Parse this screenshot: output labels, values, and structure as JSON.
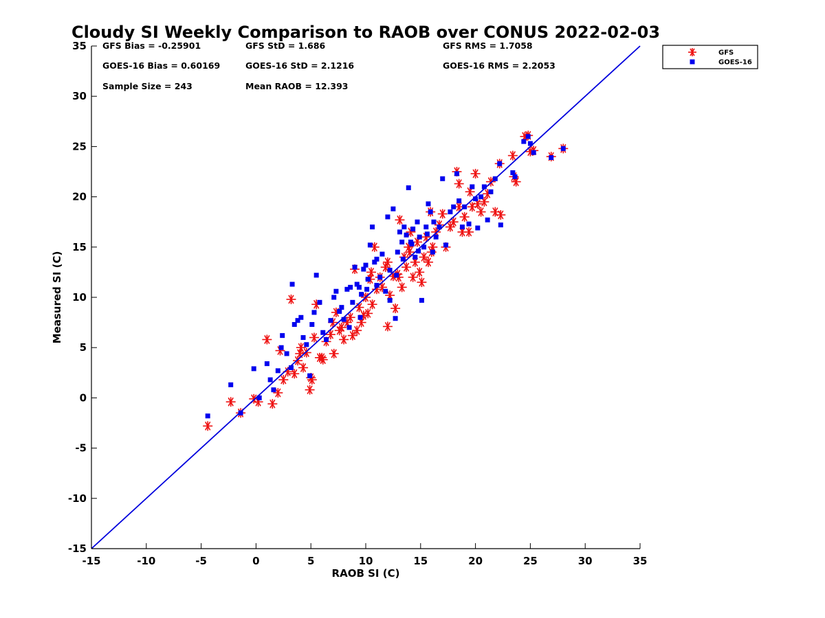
{
  "chart_data": {
    "type": "scatter",
    "title": "Cloudy SI Weekly Comparison to RAOB over CONUS 2022-02-03",
    "xlabel": "RAOB SI (C)",
    "ylabel": "Measured SI (C)",
    "xlim": [
      -15,
      35
    ],
    "ylim": [
      -15,
      35
    ],
    "xticks": [
      -15,
      -10,
      -5,
      0,
      5,
      10,
      15,
      20,
      25,
      30,
      35
    ],
    "yticks": [
      -15,
      -10,
      -5,
      0,
      5,
      10,
      15,
      20,
      25,
      30,
      35
    ],
    "grid": false,
    "legend_position": "outside-top-right",
    "reference_line": {
      "type": "one-to-one",
      "from": [
        -15,
        -15
      ],
      "to": [
        35,
        35
      ],
      "color": "#0000dd"
    },
    "stats": [
      [
        "GFS Bias = -0.25901",
        "GFS StD = 1.686",
        "GFS RMS = 1.7058"
      ],
      [
        "GOES-16 Bias = 0.60169",
        "GOES-16 StD = 2.1216",
        "GOES-16 RMS = 2.2053"
      ],
      [
        "Sample Size = 243",
        "Mean RAOB = 12.393"
      ]
    ],
    "series": [
      {
        "name": "GFS",
        "marker": "asterisk",
        "color": "#ee1111",
        "points": [
          [
            -4.4,
            -2.8
          ],
          [
            -2.3,
            -0.4
          ],
          [
            -1.4,
            -1.5
          ],
          [
            -0.2,
            -0.1
          ],
          [
            0.2,
            -0.4
          ],
          [
            1.0,
            5.8
          ],
          [
            1.5,
            -0.6
          ],
          [
            2.0,
            0.5
          ],
          [
            2.2,
            4.7
          ],
          [
            2.5,
            1.8
          ],
          [
            2.9,
            2.6
          ],
          [
            3.2,
            9.8
          ],
          [
            3.5,
            2.4
          ],
          [
            3.8,
            3.7
          ],
          [
            4.1,
            5.0
          ],
          [
            4.3,
            3.0
          ],
          [
            4.6,
            4.5
          ],
          [
            4.9,
            0.8
          ],
          [
            5.1,
            1.8
          ],
          [
            5.3,
            6.0
          ],
          [
            5.5,
            9.3
          ],
          [
            5.8,
            4.0
          ],
          [
            6.1,
            3.8
          ],
          [
            6.4,
            5.6
          ],
          [
            6.8,
            6.3
          ],
          [
            7.1,
            4.4
          ],
          [
            7.3,
            8.5
          ],
          [
            7.6,
            6.7
          ],
          [
            7.8,
            7.0
          ],
          [
            8.0,
            5.8
          ],
          [
            8.3,
            7.5
          ],
          [
            8.6,
            8.0
          ],
          [
            8.8,
            6.2
          ],
          [
            9.0,
            12.8
          ],
          [
            9.2,
            6.7
          ],
          [
            9.4,
            9.0
          ],
          [
            9.6,
            7.5
          ],
          [
            9.8,
            8.2
          ],
          [
            10.0,
            10.0
          ],
          [
            10.2,
            8.4
          ],
          [
            10.4,
            11.8
          ],
          [
            10.6,
            9.3
          ],
          [
            10.8,
            15.0
          ],
          [
            11.0,
            10.8
          ],
          [
            11.3,
            12.0
          ],
          [
            11.5,
            11.0
          ],
          [
            11.8,
            13.0
          ],
          [
            12.0,
            7.1
          ],
          [
            12.2,
            10.2
          ],
          [
            12.5,
            12.1
          ],
          [
            12.7,
            8.9
          ],
          [
            12.9,
            12.3
          ],
          [
            13.1,
            17.7
          ],
          [
            13.3,
            11.0
          ],
          [
            13.5,
            14.0
          ],
          [
            13.7,
            13.0
          ],
          [
            13.9,
            15.0
          ],
          [
            14.1,
            16.5
          ],
          [
            14.3,
            12.0
          ],
          [
            14.5,
            13.5
          ],
          [
            14.7,
            15.5
          ],
          [
            14.9,
            12.5
          ],
          [
            15.1,
            11.5
          ],
          [
            15.3,
            14.0
          ],
          [
            15.5,
            16.0
          ],
          [
            15.7,
            13.5
          ],
          [
            15.9,
            18.5
          ],
          [
            16.1,
            15.0
          ],
          [
            16.4,
            16.5
          ],
          [
            16.7,
            17.2
          ],
          [
            17.0,
            18.3
          ],
          [
            17.3,
            15.0
          ],
          [
            17.7,
            17.0
          ],
          [
            18.0,
            17.5
          ],
          [
            18.3,
            22.5
          ],
          [
            18.5,
            21.3
          ],
          [
            18.8,
            16.5
          ],
          [
            19.0,
            18.0
          ],
          [
            19.4,
            16.5
          ],
          [
            19.7,
            19.0
          ],
          [
            20.0,
            22.3
          ],
          [
            20.2,
            19.3
          ],
          [
            20.5,
            18.5
          ],
          [
            20.8,
            19.5
          ],
          [
            21.1,
            20.3
          ],
          [
            21.4,
            21.5
          ],
          [
            21.8,
            18.5
          ],
          [
            22.3,
            18.2
          ],
          [
            22.2,
            23.3
          ],
          [
            23.4,
            24.1
          ],
          [
            23.5,
            22.0
          ],
          [
            23.7,
            21.5
          ],
          [
            24.5,
            26.0
          ],
          [
            24.8,
            26.1
          ],
          [
            25.0,
            24.5
          ],
          [
            25.3,
            24.6
          ],
          [
            26.9,
            24.0
          ],
          [
            28.0,
            24.8
          ],
          [
            6.0,
            4.0
          ],
          [
            7.0,
            7.5
          ],
          [
            4.0,
            4.4
          ],
          [
            5.0,
            2.0
          ],
          [
            10.5,
            12.5
          ],
          [
            12.0,
            13.5
          ],
          [
            13.0,
            12.0
          ],
          [
            14.0,
            14.5
          ],
          [
            16.0,
            14.5
          ],
          [
            18.5,
            19.0
          ],
          [
            19.5,
            20.5
          ]
        ]
      },
      {
        "name": "GOES-16",
        "marker": "square",
        "color": "#0000ee",
        "points": [
          [
            -4.4,
            -1.8
          ],
          [
            -2.3,
            1.3
          ],
          [
            -1.4,
            -1.5
          ],
          [
            -0.2,
            2.9
          ],
          [
            0.3,
            0.0
          ],
          [
            1.0,
            3.4
          ],
          [
            1.3,
            1.8
          ],
          [
            1.6,
            0.8
          ],
          [
            2.0,
            2.7
          ],
          [
            2.3,
            5.0
          ],
          [
            2.4,
            6.2
          ],
          [
            2.8,
            4.4
          ],
          [
            3.2,
            3.0
          ],
          [
            3.3,
            11.3
          ],
          [
            3.5,
            7.3
          ],
          [
            3.8,
            7.7
          ],
          [
            4.1,
            8.0
          ],
          [
            4.3,
            6.0
          ],
          [
            4.6,
            5.3
          ],
          [
            4.9,
            2.2
          ],
          [
            5.1,
            7.3
          ],
          [
            5.3,
            8.5
          ],
          [
            5.5,
            12.2
          ],
          [
            5.8,
            9.5
          ],
          [
            6.1,
            6.5
          ],
          [
            6.4,
            5.8
          ],
          [
            6.8,
            7.7
          ],
          [
            7.1,
            10.0
          ],
          [
            7.3,
            10.6
          ],
          [
            7.6,
            8.6
          ],
          [
            7.8,
            9.0
          ],
          [
            8.0,
            7.8
          ],
          [
            8.3,
            10.8
          ],
          [
            8.6,
            11.0
          ],
          [
            8.8,
            9.5
          ],
          [
            9.0,
            13.0
          ],
          [
            9.2,
            11.3
          ],
          [
            9.4,
            11.0
          ],
          [
            9.6,
            10.3
          ],
          [
            9.8,
            12.8
          ],
          [
            10.0,
            13.2
          ],
          [
            10.2,
            11.8
          ],
          [
            10.4,
            15.2
          ],
          [
            10.6,
            17.0
          ],
          [
            10.8,
            13.5
          ],
          [
            11.0,
            13.8
          ],
          [
            11.3,
            12.0
          ],
          [
            11.5,
            14.3
          ],
          [
            11.8,
            10.6
          ],
          [
            12.0,
            18.0
          ],
          [
            12.2,
            9.7
          ],
          [
            12.5,
            18.8
          ],
          [
            12.7,
            7.9
          ],
          [
            12.9,
            14.5
          ],
          [
            13.1,
            16.5
          ],
          [
            13.3,
            15.5
          ],
          [
            13.5,
            17.0
          ],
          [
            13.7,
            16.2
          ],
          [
            13.9,
            20.9
          ],
          [
            14.1,
            15.5
          ],
          [
            14.3,
            16.8
          ],
          [
            14.5,
            14.0
          ],
          [
            14.7,
            17.5
          ],
          [
            14.9,
            16.0
          ],
          [
            15.1,
            9.7
          ],
          [
            15.3,
            15.0
          ],
          [
            15.5,
            17.0
          ],
          [
            15.7,
            19.3
          ],
          [
            15.9,
            18.5
          ],
          [
            16.1,
            14.5
          ],
          [
            16.4,
            16.0
          ],
          [
            16.7,
            17.0
          ],
          [
            17.0,
            21.8
          ],
          [
            17.3,
            15.2
          ],
          [
            17.7,
            18.5
          ],
          [
            18.0,
            19.0
          ],
          [
            18.3,
            22.3
          ],
          [
            18.5,
            19.6
          ],
          [
            18.8,
            17.0
          ],
          [
            19.0,
            19.0
          ],
          [
            19.4,
            17.3
          ],
          [
            19.7,
            21.0
          ],
          [
            20.0,
            19.8
          ],
          [
            20.2,
            16.9
          ],
          [
            20.5,
            20.0
          ],
          [
            20.8,
            21.0
          ],
          [
            21.1,
            17.7
          ],
          [
            21.4,
            20.5
          ],
          [
            21.8,
            21.8
          ],
          [
            22.3,
            17.2
          ],
          [
            22.2,
            23.3
          ],
          [
            23.4,
            22.4
          ],
          [
            23.6,
            22.0
          ],
          [
            24.4,
            25.5
          ],
          [
            24.8,
            26.0
          ],
          [
            25.0,
            25.3
          ],
          [
            25.3,
            24.4
          ],
          [
            26.9,
            23.9
          ],
          [
            28.0,
            24.8
          ],
          [
            12.2,
            12.7
          ],
          [
            13.4,
            13.8
          ],
          [
            14.2,
            15.3
          ],
          [
            15.6,
            16.3
          ],
          [
            11.0,
            11.2
          ],
          [
            12.8,
            12.2
          ],
          [
            14.8,
            14.6
          ],
          [
            16.2,
            17.5
          ],
          [
            9.5,
            8.0
          ],
          [
            8.5,
            7.0
          ],
          [
            10.1,
            10.8
          ]
        ]
      }
    ]
  }
}
